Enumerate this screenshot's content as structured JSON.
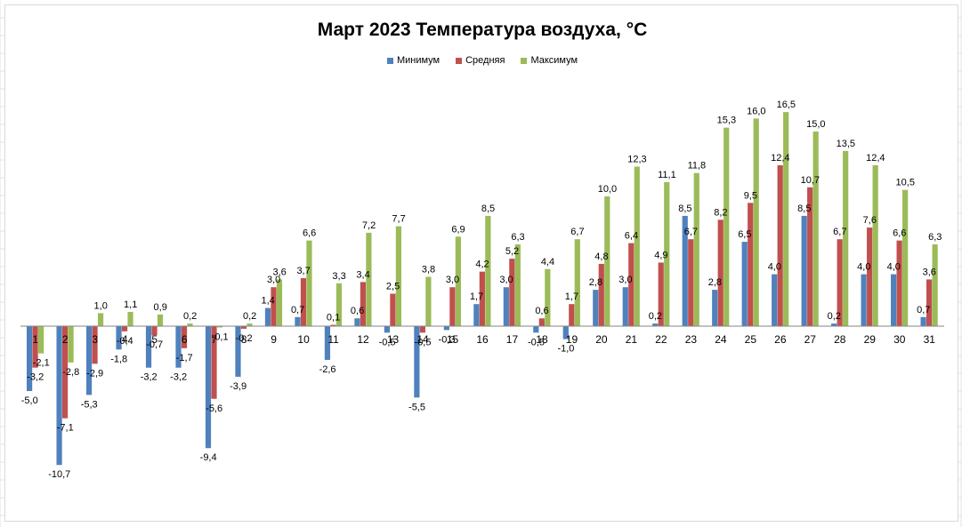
{
  "chart_data": {
    "type": "bar",
    "title": "Март 2023  Температура воздуха, °С",
    "xlabel": "",
    "ylabel": "",
    "ylim": [
      -13,
      18
    ],
    "grid": false,
    "legend_position": "top-center",
    "categories": [
      "1",
      "2",
      "3",
      "4",
      "5",
      "6",
      "7",
      "8",
      "9",
      "10",
      "11",
      "12",
      "13",
      "14",
      "15",
      "16",
      "17",
      "18",
      "19",
      "20",
      "21",
      "22",
      "23",
      "24",
      "25",
      "26",
      "27",
      "28",
      "29",
      "30",
      "31"
    ],
    "series": [
      {
        "name": "Минимум",
        "color": "#4f81bd",
        "values": [
          -5.0,
          -10.7,
          -5.3,
          -1.8,
          -3.2,
          -3.2,
          -9.4,
          -3.9,
          1.4,
          0.7,
          -2.6,
          0.6,
          -0.5,
          -5.5,
          -0.3,
          1.7,
          3.0,
          -0.5,
          -1.0,
          2.8,
          3.0,
          0.2,
          8.5,
          2.8,
          6.5,
          4.0,
          8.5,
          0.2,
          4.0,
          4.0,
          0.7
        ],
        "labels": [
          "-5,0",
          "-10,7",
          "-5,3",
          "-1,8",
          "-3,2",
          "-3,2",
          "-9,4",
          "-3,9",
          "1,4",
          "0,7",
          "-2,6",
          "0,6",
          "-0,5",
          "-5,5",
          "-0,3",
          "1,7",
          "3,0",
          "-0,5",
          "-1,0",
          "2,8",
          "3,0",
          "0,2",
          "8,5",
          "2,8",
          "6,5",
          "4,0",
          "8,5",
          "0,2",
          "4,0",
          "4,0",
          "0,7"
        ]
      },
      {
        "name": "Средняя",
        "color": "#c0504d",
        "values": [
          -3.2,
          -7.1,
          -2.9,
          -0.4,
          -0.7,
          -1.7,
          -5.6,
          -0.2,
          3.0,
          3.7,
          0.1,
          3.4,
          2.5,
          -0.5,
          3.0,
          4.2,
          5.2,
          0.6,
          1.7,
          4.8,
          6.4,
          4.9,
          6.7,
          8.2,
          9.5,
          12.4,
          10.7,
          6.7,
          7.6,
          6.6,
          3.6
        ],
        "labels": [
          "-3,2",
          "-7,1",
          "-2,9",
          "-0,4",
          "-0,7",
          "-1,7",
          "-5,6",
          "-0,2",
          "3,0",
          "3,7",
          "0,1",
          "3,4",
          "2,5",
          "-0,5",
          "3,0",
          "4,2",
          "5,2",
          "0,6",
          "1,7",
          "4,8",
          "6,4",
          "4,9",
          "6,7",
          "8,2",
          "9,5",
          "12,4",
          "10,7",
          "6,7",
          "7,6",
          "6,6",
          "3,6"
        ]
      },
      {
        "name": "Максимум",
        "color": "#9bbb59",
        "values": [
          -2.1,
          -2.8,
          1.0,
          1.1,
          0.9,
          0.2,
          -0.1,
          0.2,
          3.6,
          6.6,
          3.3,
          7.2,
          7.7,
          3.8,
          6.9,
          8.5,
          6.3,
          4.4,
          6.7,
          10.0,
          12.3,
          11.1,
          11.8,
          15.3,
          16.0,
          16.5,
          15.0,
          13.5,
          12.4,
          10.5,
          6.3
        ],
        "labels": [
          "-2,1",
          "-2,8",
          "1,0",
          "1,1",
          "0,9",
          "0,2",
          "-0,1",
          "0,2",
          "3,6",
          "6,6",
          "3,3",
          "7,2",
          "7,7",
          "3,8",
          "6,9",
          "8,5",
          "6,3",
          "4,4",
          "6,7",
          "10,0",
          "12,3",
          "11,1",
          "11,8",
          "15,3",
          "16,0",
          "16,5",
          "15,0",
          "13,5",
          "12,4",
          "10,5",
          "6,3"
        ]
      }
    ]
  }
}
